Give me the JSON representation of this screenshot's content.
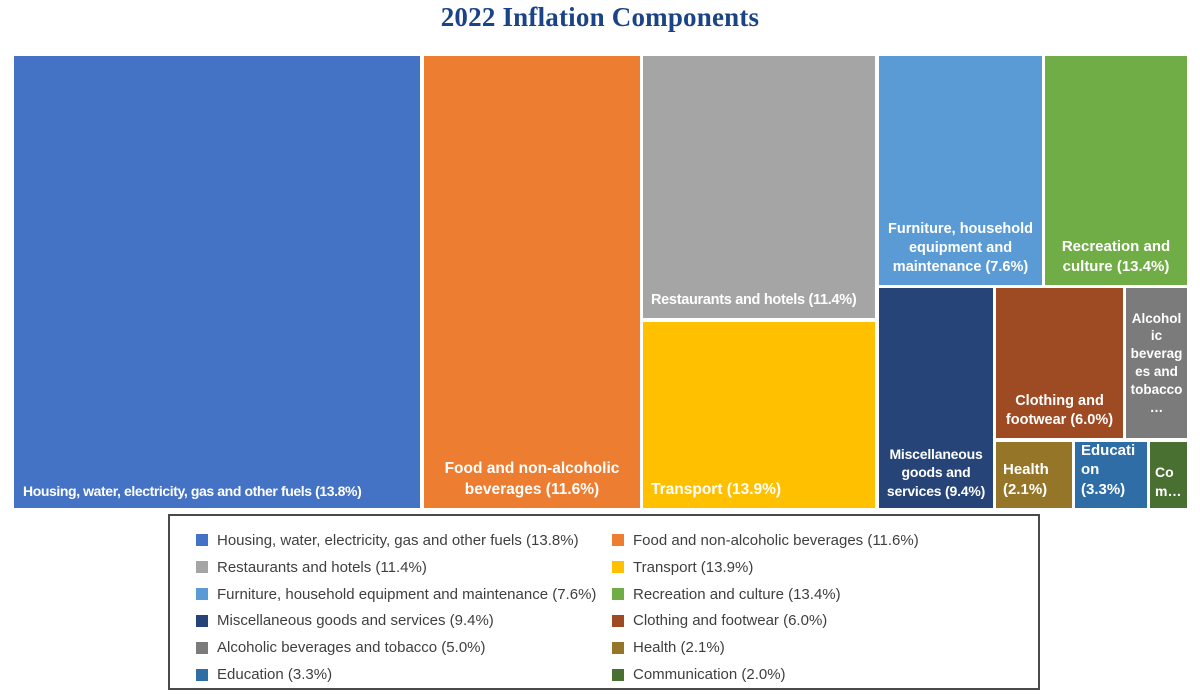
{
  "title": "2022 Inflation Components",
  "chart_data": {
    "type": "treemap",
    "title": "2022 Inflation Components",
    "value_unit": "% inflation",
    "items": [
      {
        "name": "Housing, water, electricity, gas and other fuels",
        "value": 13.8,
        "display": "Housing, water, electricity, gas and other fuels (13.8%)",
        "color": "#4472C4"
      },
      {
        "name": "Food and non-alcoholic beverages",
        "value": 11.6,
        "display": "Food and non-alcoholic beverages (11.6%)",
        "color": "#ED7D31"
      },
      {
        "name": "Restaurants and hotels",
        "value": 11.4,
        "display": "Restaurants and hotels (11.4%)",
        "color": "#A5A5A5"
      },
      {
        "name": "Transport",
        "value": 13.9,
        "display": "Transport (13.9%)",
        "color": "#FFC000"
      },
      {
        "name": "Furniture, household equipment and maintenance",
        "value": 7.6,
        "display": "Furniture, household equipment and maintenance (7.6%)",
        "color": "#5B9BD5"
      },
      {
        "name": "Recreation and culture",
        "value": 13.4,
        "display": "Recreation and culture (13.4%)",
        "color": "#70AD47"
      },
      {
        "name": "Miscellaneous goods and services",
        "value": 9.4,
        "display": "Miscellaneous goods and services (9.4%)",
        "color": "#264478"
      },
      {
        "name": "Clothing and footwear",
        "value": 6.0,
        "display": "Clothing and footwear (6.0%)",
        "color": "#9E4A23"
      },
      {
        "name": "Alcoholic beverages and tobacco",
        "value": 5.0,
        "display": "Alcoholic beverages and tobacco…",
        "color": "#7B7B7B"
      },
      {
        "name": "Health",
        "value": 2.1,
        "display": "Health (2.1%)",
        "color": "#957528"
      },
      {
        "name": "Education",
        "value": 3.3,
        "display": "Education (3.3%)",
        "color": "#2E6DA6"
      },
      {
        "name": "Communication",
        "value": 2.0,
        "display": "Com…",
        "color": "#4A7031"
      }
    ],
    "legend": {
      "position": "bottom",
      "columns": [
        {
          "entries": [
            {
              "label": "Housing, water, electricity, gas and other fuels (13.8%)",
              "color": "#4472C4"
            },
            {
              "label": "Restaurants and hotels (11.4%)",
              "color": "#A5A5A5"
            },
            {
              "label": "Furniture, household equipment and maintenance (7.6%)",
              "color": "#5B9BD5"
            },
            {
              "label": "Miscellaneous goods and services (9.4%)",
              "color": "#264478"
            },
            {
              "label": "Alcoholic beverages and tobacco (5.0%)",
              "color": "#7B7B7B"
            },
            {
              "label": "Education (3.3%)",
              "color": "#2E6DA6"
            }
          ]
        },
        {
          "entries": [
            {
              "label": "Food and non-alcoholic beverages (11.6%)",
              "color": "#ED7D31"
            },
            {
              "label": "Transport (13.9%)",
              "color": "#FFC000"
            },
            {
              "label": "Recreation and culture (13.4%)",
              "color": "#70AD47"
            },
            {
              "label": "Clothing and footwear (6.0%)",
              "color": "#9E4A23"
            },
            {
              "label": "Health (2.1%)",
              "color": "#957528"
            },
            {
              "label": "Communication (2.0%)",
              "color": "#4A7031"
            }
          ]
        }
      ]
    }
  }
}
